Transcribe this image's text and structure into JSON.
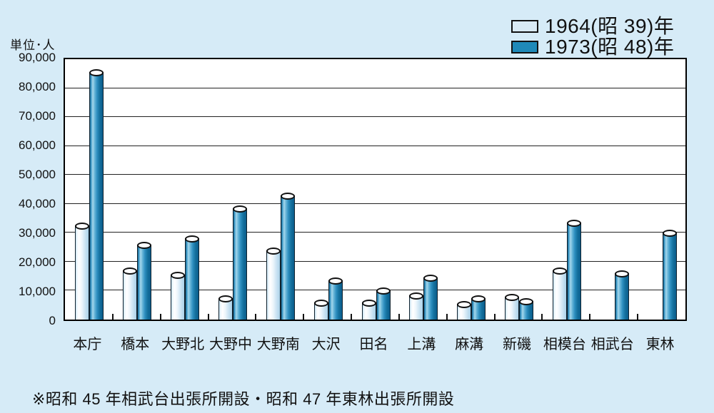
{
  "unit_label": "単位･人",
  "legend": [
    {
      "label": "1964(昭 39)年",
      "color": "#d9eaf5"
    },
    {
      "label": "1973(昭 48)年",
      "color": "#1f89b8"
    }
  ],
  "footnote": "※昭和 45 年相武台出張所開設・昭和 47 年東林出張所開設",
  "colors": {
    "background": "#d6ebf7",
    "plot_background": "#ffffff",
    "bar_1964": "#d9eaf5",
    "bar_1973": "#1f89b8",
    "grid": "#222222"
  },
  "chart_data": {
    "type": "bar",
    "bar_style": "cylinder-3d",
    "categories": [
      "本庁",
      "橋本",
      "大野北",
      "大野中",
      "大野南",
      "大沢",
      "田名",
      "上溝",
      "麻溝",
      "新磯",
      "相模台",
      "相武台",
      "東林"
    ],
    "series": [
      {
        "name": "1964(昭 39)年",
        "values": [
          32500,
          17000,
          15500,
          7500,
          24000,
          6000,
          6000,
          8500,
          5500,
          8000,
          17000,
          null,
          null
        ]
      },
      {
        "name": "1973(昭 48)年",
        "values": [
          85500,
          26000,
          28000,
          38500,
          43000,
          13500,
          10000,
          14500,
          7500,
          6500,
          33500,
          16000,
          30000
        ]
      }
    ],
    "ylabel": "単位･人",
    "xlabel": "",
    "ylim": [
      0,
      90000
    ],
    "ytick_interval": 10000,
    "ytick_labels": [
      "90,000",
      "80,000",
      "70,000",
      "60,000",
      "50,000",
      "40,000",
      "30,000",
      "20,000",
      "10,000",
      "0"
    ],
    "grid": true,
    "legend_position": "top-right"
  }
}
